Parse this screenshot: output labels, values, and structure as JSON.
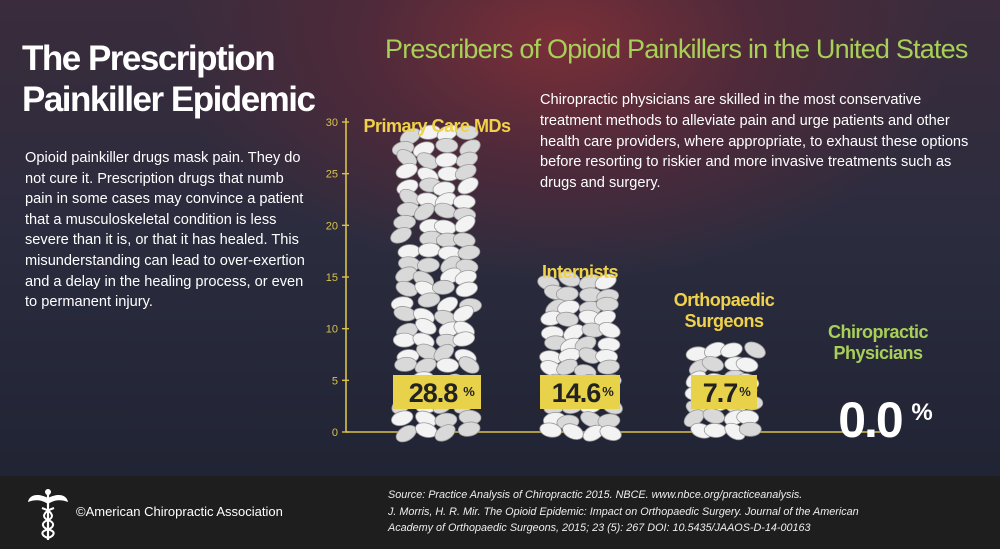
{
  "title_lines": [
    "The Prescription",
    "Painkiller Epidemic"
  ],
  "lead_text": "Opioid painkiller drugs mask pain. They do not cure it. Prescription drugs that numb pain in some cases may convince a patient that a musculoskeletal condition is less severe than it is, or that it has healed. This misunderstanding can lead to over-exertion and a delay in the healing process, or even to permanent injury.",
  "chart_heading": "Prescribers of Opioid Painkillers in the United States",
  "note_text": "Chiropractic physicians are skilled in the most conservative treatment methods to alleviate pain and urge patients and other health care providers, where appropriate, to exhaust these options before resorting to riskier and more invasive treatments such as drugs and surgery.",
  "footer": {
    "copyright": "©American Chiropractic Association",
    "source_lines": [
      "Source: Practice Analysis of Chiropractic 2015. NBCE. www.nbce.org/practiceanalysis.",
      "J. Morris, H. R. Mir. The Opioid Epidemic: Impact on Orthopaedic Surgery. Journal of the American",
      "Academy of Orthopaedic Surgeons, 2015; 23 (5): 267 DOI: 10.5435/JAAOS-D-14-00163"
    ]
  },
  "chart_data": {
    "type": "bar",
    "title": "Prescribers of Opioid Painkillers in the United States",
    "categories": [
      "Primary Care MDs",
      "Internists",
      "Orthopaedic Surgeons",
      "Chiropractic Physicians"
    ],
    "category_label_lines": [
      [
        "Primary Care MDs"
      ],
      [
        "Internists"
      ],
      [
        "Orthopaedic",
        "Surgeons"
      ],
      [
        "Chiropractic",
        "Physicians"
      ]
    ],
    "values": [
      28.8,
      14.6,
      7.7,
      0.0
    ],
    "value_labels": [
      "28.8",
      "14.6",
      "7.7",
      "0.0"
    ],
    "unit": "%",
    "yticks": [
      0,
      5,
      10,
      15,
      20,
      25,
      30
    ],
    "ylim": [
      0,
      30
    ],
    "grid": false,
    "bar_style": "stacked pills",
    "colors": {
      "axis": "#d9c24a",
      "label_box": "#e8d24a",
      "category_text": "#f0d24a",
      "chiro_text": "#a8cf58",
      "heading": "#a8cf58"
    }
  }
}
